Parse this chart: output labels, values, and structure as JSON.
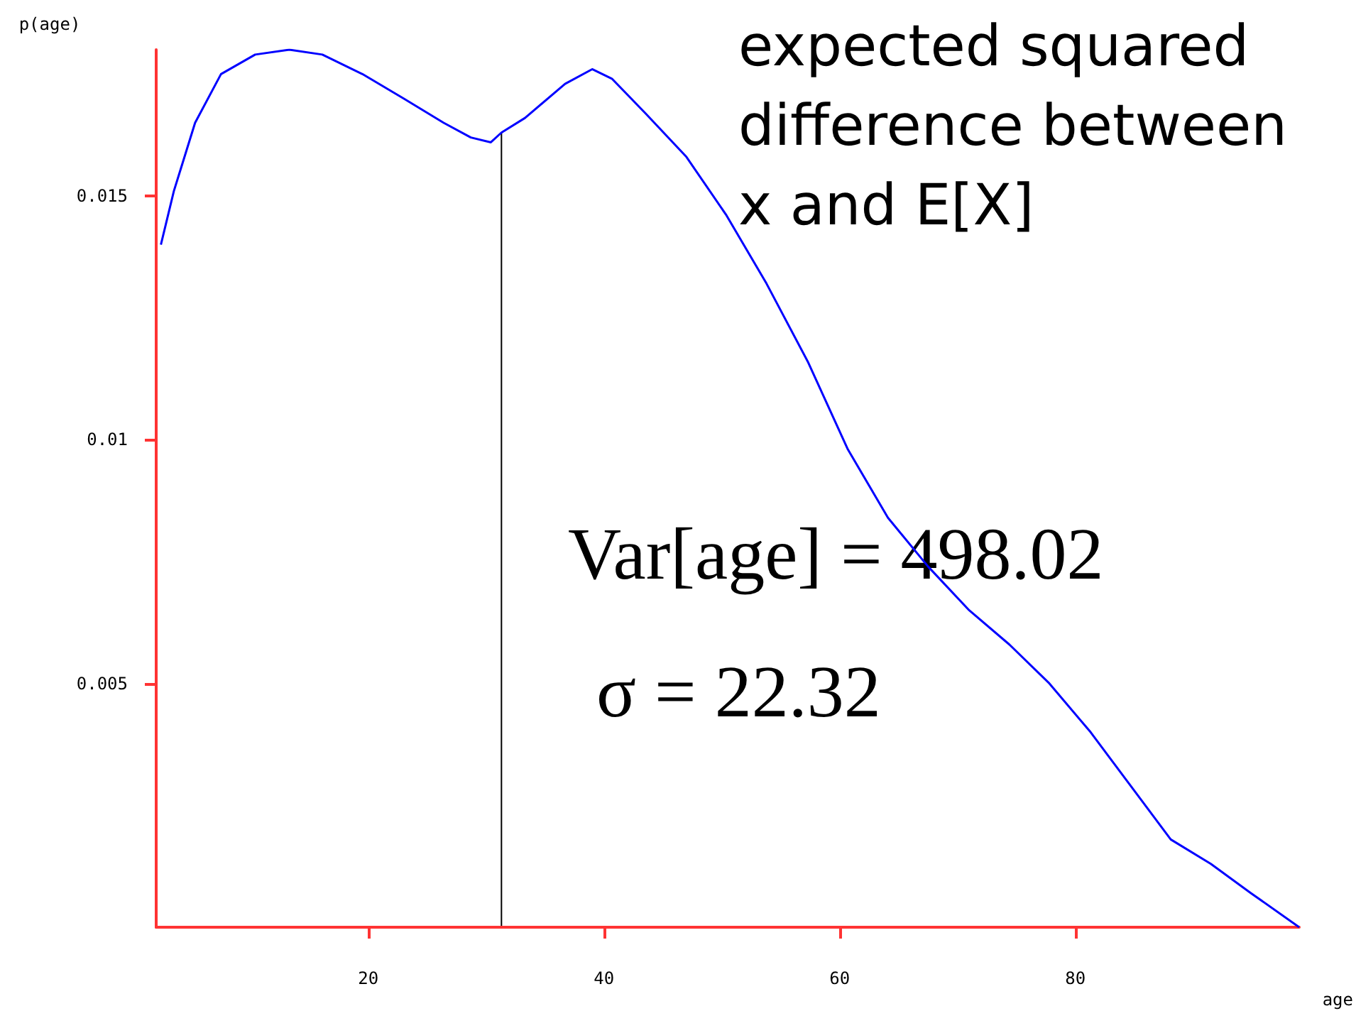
{
  "chart_data": {
    "type": "line",
    "xlabel": "age",
    "ylabel": "p(age)",
    "x": [
      2.4,
      3.5,
      5.3,
      7.5,
      10.4,
      13.3,
      16.1,
      19.5,
      23,
      26.4,
      28.7,
      30.4,
      31.3,
      33.3,
      36.7,
      39,
      40.7,
      43.5,
      47,
      50.4,
      53.8,
      57.3,
      60.7,
      64.1,
      67.5,
      71,
      74.4,
      77.8,
      81.3,
      84.7,
      88.1,
      91.5,
      94.9,
      99
    ],
    "series": [
      {
        "color": "#0000ff",
        "values": [
          0.014,
          0.0151,
          0.0165,
          0.0175,
          0.0179,
          0.018,
          0.0179,
          0.0175,
          0.017,
          0.0165,
          0.0162,
          0.0161,
          0.0163,
          0.0166,
          0.0173,
          0.0176,
          0.0174,
          0.0167,
          0.0158,
          0.0146,
          0.0132,
          0.0116,
          0.0098,
          0.0084,
          0.0074,
          0.0065,
          0.0058,
          0.005,
          0.004,
          0.0029,
          0.0018,
          0.0013,
          0.0007,
          0.0
        ]
      }
    ],
    "xlim": [
      2,
      99
    ],
    "xticks": [
      20,
      40,
      60,
      80
    ],
    "ylim": [
      0,
      0.018
    ],
    "yticks": [
      0.005,
      0.01,
      0.015
    ],
    "ref_lines": [
      {
        "axis": "x",
        "value": 31.3,
        "color": "#000000"
      }
    ],
    "annotations": [
      "expected squared difference between x and E[X]",
      "Var[age] = 498.02",
      "σ = 22.32"
    ],
    "grid": false
  }
}
